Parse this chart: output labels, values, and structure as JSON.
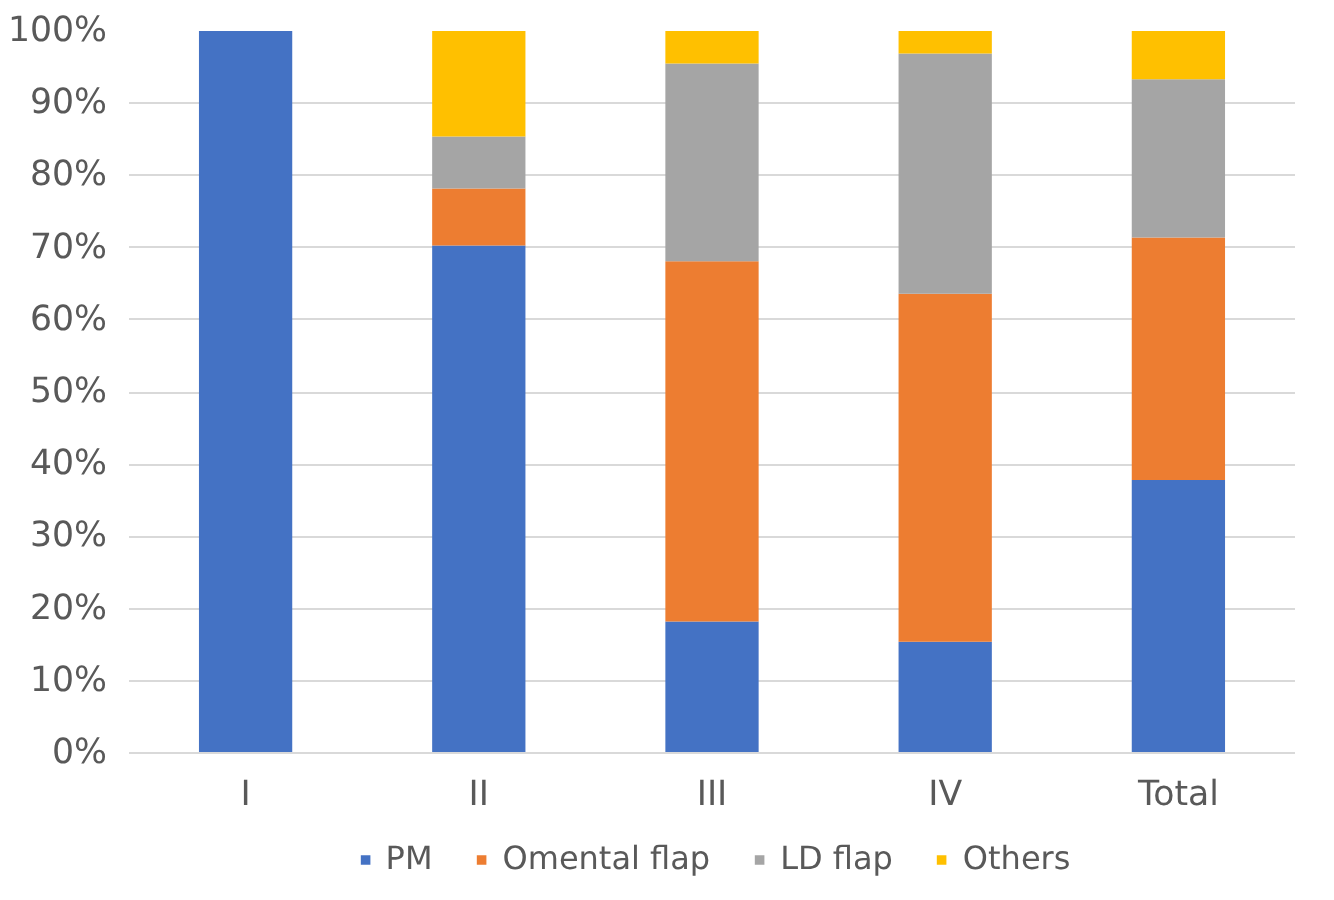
{
  "chart_data": {
    "type": "bar",
    "stacked": true,
    "categories": [
      "I",
      "II",
      "III",
      "IV",
      "Total"
    ],
    "series": [
      {
        "name": "PM",
        "color": "#4472c4",
        "values": [
          100,
          70.3,
          18.2,
          15.4,
          37.8
        ]
      },
      {
        "name": "Omental flap",
        "color": "#ed7d31",
        "values": [
          0,
          7.9,
          49.9,
          48.2,
          33.6
        ]
      },
      {
        "name": "LD flap",
        "color": "#a5a5a5",
        "values": [
          0,
          7.2,
          27.4,
          33.3,
          21.9
        ]
      },
      {
        "name": "Others",
        "color": "#ffc000",
        "values": [
          0,
          14.6,
          4.5,
          3.1,
          6.7
        ]
      }
    ],
    "ylim": [
      0,
      100
    ],
    "yticks": [
      {
        "value": 0,
        "label": "0%"
      },
      {
        "value": 10,
        "label": "10%"
      },
      {
        "value": 20,
        "label": "20%"
      },
      {
        "value": 30,
        "label": "30%"
      },
      {
        "value": 40,
        "label": "40%"
      },
      {
        "value": 50,
        "label": "50%"
      },
      {
        "value": 60,
        "label": "60%"
      },
      {
        "value": 70,
        "label": "70%"
      },
      {
        "value": 80,
        "label": "80%"
      },
      {
        "value": 90,
        "label": "90%"
      },
      {
        "value": 100,
        "label": "100%"
      }
    ],
    "grid": "y",
    "legend": "bottom"
  }
}
